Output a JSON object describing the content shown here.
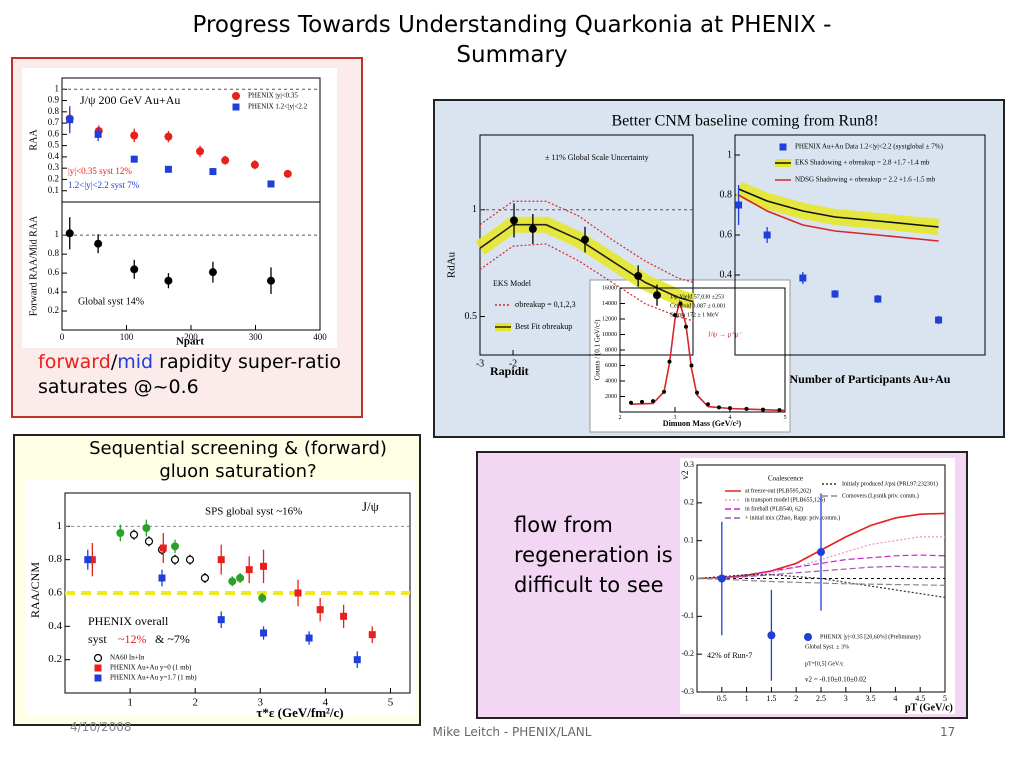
{
  "slide": {
    "title": "Progress Towards Understanding Quarkonia at PHENIX - Summary",
    "caption": [
      {
        "text": "forward",
        "color": "#e8201c"
      },
      {
        "text": "/"
      },
      {
        "text": "mid",
        "color": "#1f3fd8"
      },
      {
        "text": " rapidity super-ratio saturates @~0.6"
      }
    ],
    "side_text": "flow from regeneration is difficult to see",
    "date": "4/10/2008",
    "footer": "Mike Leitch - PHENIX/LANL",
    "page": 17
  },
  "chart_data": [
    {
      "type": "scatter",
      "ylabel": "RAA",
      "xlim": [
        0,
        400
      ],
      "ylim": [
        0,
        1.1
      ],
      "yticks": [
        0.1,
        0.2,
        0.3,
        0.4,
        0.5,
        0.6,
        0.7,
        0.8,
        0.9,
        1
      ],
      "reference_lines": [
        {
          "value": 1,
          "color": "#555555"
        }
      ],
      "series": [
        {
          "name": "PHENIX |y|<0.35",
          "color": "#e8201c",
          "marker": "circle",
          "x": [
            12,
            57,
            112,
            165,
            214,
            253,
            299,
            350
          ],
          "values": [
            0.74,
            0.63,
            0.59,
            0.58,
            0.45,
            0.37,
            0.33,
            0.25
          ],
          "errors": [
            0.08,
            0.05,
            0.06,
            0.05,
            0.05,
            0.04,
            0.04,
            0.03
          ]
        },
        {
          "name": "PHENIX 1.2<|y|<2.2",
          "color": "#1f3fd8",
          "marker": "square",
          "x": [
            12,
            56,
            112,
            165,
            234,
            324
          ],
          "values": [
            0.73,
            0.6,
            0.38,
            0.29,
            0.27,
            0.16
          ],
          "errors": [
            0.12,
            0.06,
            0.03,
            0.02,
            0.02,
            0.03
          ]
        }
      ],
      "annotations": [
        {
          "text": "J/ψ   200 GeV Au+Au"
        },
        {
          "text": "|y|<0.35 syst 12%",
          "color": "#e8201c"
        },
        {
          "text": "1.2<|y|<2.2 syst 7%",
          "color": "#1f3fd8"
        }
      ]
    },
    {
      "type": "scatter",
      "ylabel": "Forward RAA/Mid RAA",
      "xlabel": "Npart",
      "xlim": [
        0,
        400
      ],
      "xticks": [
        0,
        100,
        200,
        300,
        400
      ],
      "ylim": [
        0,
        1.35
      ],
      "yticks": [
        0.2,
        0.4,
        0.6,
        0.8,
        1
      ],
      "reference_lines": [
        {
          "value": 1,
          "color": "#555555"
        }
      ],
      "series": [
        {
          "color": "#000000",
          "marker": "circle",
          "x": [
            12,
            56,
            112,
            165,
            234,
            324
          ],
          "values": [
            1.02,
            0.91,
            0.64,
            0.52,
            0.61,
            0.52
          ],
          "errors": [
            0.17,
            0.1,
            0.1,
            0.08,
            0.11,
            0.14
          ]
        }
      ],
      "annotations": [
        {
          "text": "Global syst 14%"
        }
      ]
    },
    {
      "type": "scatter",
      "title": "Better CNM baseline coming from Run8!",
      "ylabel": "RdAu",
      "xlabel": "Rapidit",
      "xlim": [
        -3,
        3.45
      ],
      "xticks": [
        -3,
        -2
      ],
      "ylim": [
        0.32,
        1.35
      ],
      "yticks": [
        0.5,
        1
      ],
      "reference_lines": [
        {
          "value": 1,
          "color": "#555555"
        }
      ],
      "series": [
        {
          "name": "σbreakup = 0,1,2,3",
          "color": "#d62728",
          "marker": "dotted-line",
          "x": [
            -3,
            -2,
            -1,
            0,
            1,
            2,
            3,
            3.45
          ],
          "values": [
            0.93,
            1.04,
            1.04,
            0.97,
            0.86,
            0.76,
            0.68,
            0.66
          ]
        },
        {
          "color": "#d62728",
          "marker": "dotted-line",
          "x": [
            -3,
            -2,
            -1,
            0,
            1,
            2,
            3,
            3.45
          ],
          "values": [
            0.72,
            0.83,
            0.84,
            0.76,
            0.66,
            0.56,
            0.5,
            0.48
          ]
        },
        {
          "name": "Best Fit σbreakup",
          "color": "#222222",
          "band_color": "#e6e62a",
          "marker": "line",
          "x": [
            -3,
            -2,
            -1,
            0,
            1,
            2,
            3,
            3.45
          ],
          "values": [
            0.82,
            0.93,
            0.93,
            0.86,
            0.76,
            0.66,
            0.59,
            0.57
          ]
        },
        {
          "color": "#000000",
          "marker": "circle",
          "x": [
            -1.97,
            -1.4,
            0.18,
            1.79,
            2.36
          ],
          "values": [
            0.95,
            0.91,
            0.86,
            0.69,
            0.6
          ],
          "errors": [
            0.08,
            0.07,
            0.06,
            0.05,
            0.05
          ]
        }
      ],
      "annotations": [
        {
          "text": "± 11% Global Scale Uncertainty"
        },
        {
          "text": "EKS Model"
        }
      ]
    },
    {
      "type": "scatter",
      "xlabel": "Number of Participants Au+Au",
      "xlim": [
        0,
        350
      ],
      "ylim": [
        0,
        1.1
      ],
      "yticks": [
        0.4,
        0.6,
        0.8,
        1
      ],
      "series": [
        {
          "name": "EKS Shadowing + σbreakup = 2.8 +1.7 -1.4 mb",
          "color": "#111111",
          "band_color": "#e6e62a",
          "marker": "line",
          "x": [
            5,
            45,
            95,
            140,
            200,
            285
          ],
          "values": [
            0.83,
            0.77,
            0.72,
            0.69,
            0.67,
            0.64
          ]
        },
        {
          "name": "NDSG Shadowing + σbreakup = 2.2 +1.6 -1.5 mb",
          "color": "#d62728",
          "marker": "line",
          "x": [
            5,
            45,
            95,
            140,
            200,
            285
          ],
          "values": [
            0.8,
            0.72,
            0.65,
            0.62,
            0.6,
            0.57
          ]
        },
        {
          "name": "PHENIX Au+Au Data 1.2<|y|<2.2 (systglobal ± 7%)",
          "color": "#1f3fd8",
          "marker": "square",
          "x": [
            5,
            45,
            95,
            140,
            200,
            285
          ],
          "values": [
            0.75,
            0.6,
            0.385,
            0.305,
            0.28,
            0.175
          ],
          "errors": [
            0.1,
            0.04,
            0.03,
            0.02,
            0.02,
            0.02
          ]
        }
      ]
    },
    {
      "type": "scatter",
      "ylabel": "Counts / (0.1 GeV/c²)",
      "xlabel": "Dimuon Mass (GeV/c²)",
      "xlim": [
        2,
        5
      ],
      "xticks": [
        2,
        3,
        4,
        5
      ],
      "ylim": [
        0,
        16000
      ],
      "yticks": [
        2000,
        4000,
        6000,
        8000,
        10000,
        12000,
        14000,
        16000
      ],
      "series": [
        {
          "color": "#d62728",
          "marker": "line",
          "x": [
            2.2,
            2.6,
            2.8,
            2.9,
            3.0,
            3.087,
            3.2,
            3.3,
            3.4,
            3.6,
            4.0,
            5
          ],
          "values": [
            1000,
            1100,
            2600,
            6300,
            12000,
            14200,
            11200,
            5600,
            2200,
            700,
            450,
            200
          ]
        },
        {
          "color": "#000000",
          "marker": "small-circle",
          "x": [
            2.2,
            2.4,
            2.6,
            2.8,
            2.9,
            3.0,
            3.1,
            3.2,
            3.3,
            3.4,
            3.6,
            3.8,
            4.0,
            4.3,
            4.6,
            4.9
          ],
          "values": [
            1200,
            1300,
            1400,
            2600,
            6500,
            12500,
            14000,
            11000,
            6000,
            2500,
            1000,
            600,
            500,
            400,
            300,
            250
          ]
        }
      ],
      "annotations": [
        {
          "text": "J/ψ Yield 57,030 ±253"
        },
        {
          "text": "Centroid 3.087 ± 0.001"
        },
        {
          "text": "Sigma 172 ± 1 MeV"
        },
        {
          "text": "J/ψ → μ⁺μ⁻",
          "color": "#d62728"
        }
      ]
    },
    {
      "type": "scatter",
      "title": "Sequential screening & (forward) gluon saturation?",
      "ylabel": "RAA/CNM",
      "xlabel": "τ*ε (GeV/fm²/c)",
      "xlim": [
        0,
        5.3
      ],
      "xticks": [
        1,
        2,
        3,
        4,
        5
      ],
      "ylim": [
        0,
        1.2
      ],
      "yticks": [
        0.2,
        0.4,
        0.6,
        0.8,
        1
      ],
      "reference_lines": [
        {
          "value": 1,
          "color": "#888888"
        },
        {
          "value": 0.6,
          "color": "#f5e81a"
        }
      ],
      "series": [
        {
          "name": "NA60 In+In",
          "color": "#000000",
          "marker": "open-circle",
          "x": [
            1.06,
            1.29,
            1.49,
            1.69,
            1.92,
            2.15
          ],
          "values": [
            0.95,
            0.91,
            0.86,
            0.8,
            0.8,
            0.69
          ],
          "errors": [
            0.03,
            0.03,
            0.03,
            0.03,
            0.03,
            0.03
          ]
        },
        {
          "name": "PHENIX Au+Au y=0 (1 mb)",
          "color": "#e8201c",
          "marker": "square",
          "x": [
            0.42,
            1.51,
            2.4,
            2.83,
            3.05,
            3.58,
            3.92,
            4.28,
            4.72
          ],
          "values": [
            0.8,
            0.87,
            0.8,
            0.74,
            0.76,
            0.6,
            0.5,
            0.46,
            0.35
          ],
          "errors": [
            0.1,
            0.09,
            0.09,
            0.08,
            0.1,
            0.08,
            0.07,
            0.07,
            0.05
          ]
        },
        {
          "name": "PHENIX Au+Au y=1.7 (1 mb)",
          "color": "#1f3fd8",
          "marker": "square",
          "x": [
            0.35,
            1.49,
            2.4,
            3.05,
            3.75,
            4.49
          ],
          "values": [
            0.8,
            0.69,
            0.44,
            0.36,
            0.33,
            0.2
          ],
          "errors": [
            0.06,
            0.05,
            0.05,
            0.04,
            0.04,
            0.05
          ]
        },
        {
          "color": "#2ca02c",
          "marker": "circle",
          "x": [
            0.85,
            1.25,
            1.69,
            2.57,
            2.69,
            3.03
          ],
          "values": [
            0.96,
            0.99,
            0.88,
            0.67,
            0.69,
            0.57
          ],
          "errors": [
            0.05,
            0.05,
            0.04,
            0.03,
            0.03,
            0.03
          ]
        }
      ],
      "annotations": [
        {
          "text": "SPS global syst ~16%"
        },
        {
          "text": "J/ψ"
        },
        {
          "text": "PHENIX overall"
        },
        {
          "text": "syst"
        },
        {
          "text": "~12%",
          "color": "#e8201c"
        },
        {
          "text": "& ~7%"
        }
      ]
    },
    {
      "type": "scatter",
      "ylabel": "v2",
      "xlabel": "pT (GeV/c)",
      "xlim": [
        0,
        5
      ],
      "xticks": [
        0.5,
        1,
        1.5,
        2,
        2.5,
        3,
        3.5,
        4,
        4.5,
        5
      ],
      "ylim": [
        -0.3,
        0.3
      ],
      "yticks": [
        -0.3,
        -0.2,
        -0.1,
        0,
        0.1,
        0.2,
        0.3
      ],
      "reference_lines": [
        {
          "value": 0,
          "color": "#000000"
        }
      ],
      "series": [
        {
          "name": "at freeze-out (PLB595,202)",
          "color": "#e8201c",
          "marker": "line",
          "x": [
            0,
            0.5,
            1,
            1.5,
            2,
            2.5,
            3,
            3.5,
            4,
            4.5,
            5
          ],
          "values": [
            0,
            0.002,
            0.008,
            0.02,
            0.04,
            0.075,
            0.11,
            0.14,
            0.16,
            0.17,
            0.172
          ]
        },
        {
          "name": "in transport model (PLB655,126)",
          "color": "#e79ab8",
          "marker": "dotted-line",
          "x": [
            0,
            0.5,
            1,
            1.5,
            2,
            2.5,
            3,
            3.5,
            4,
            4.5,
            5
          ],
          "values": [
            0,
            0,
            0.005,
            0.015,
            0.03,
            0.05,
            0.07,
            0.09,
            0.1,
            0.11,
            0.11
          ]
        },
        {
          "name": "in fireball (PLB540, 62)",
          "color": "#d020d0",
          "marker": "dashed-line",
          "x": [
            0,
            0.5,
            1,
            1.5,
            2,
            2.5,
            3,
            3.5,
            4,
            4.5,
            5
          ],
          "values": [
            0,
            0.002,
            0.01,
            0.02,
            0.03,
            0.04,
            0.05,
            0.055,
            0.06,
            0.062,
            0.06
          ]
        },
        {
          "name": "+ initial mix (Zhao, Rapp: priv. comm.)",
          "color": "#9b59b6",
          "marker": "dashed-line",
          "x": [
            0,
            0.5,
            1,
            1.5,
            2,
            2.5,
            3,
            3.5,
            4,
            4.5,
            5
          ],
          "values": [
            0,
            0.001,
            0.005,
            0.01,
            0.015,
            0.02,
            0.025,
            0.03,
            0.032,
            0.03,
            0.03
          ]
        },
        {
          "name": "Initialy produced J/psi (PRL97:232301)",
          "color": "#333333",
          "marker": "dotted-line",
          "x": [
            0,
            0.5,
            1,
            1.5,
            2,
            2.5,
            3,
            3.5,
            4,
            4.5,
            5
          ],
          "values": [
            0,
            0.005,
            0.01,
            0.01,
            0.005,
            0,
            -0.01,
            -0.02,
            -0.03,
            -0.04,
            -0.05
          ]
        },
        {
          "name": "Comovers (Lysnik priv. comm.)",
          "color": "#888888",
          "marker": "dashed-line",
          "x": [
            0,
            0.5,
            1,
            1.5,
            2,
            2.5,
            3,
            3.5,
            4,
            4.5,
            5
          ],
          "values": [
            0,
            -0.002,
            -0.005,
            -0.008,
            -0.01,
            -0.012,
            -0.014,
            -0.015,
            -0.016,
            -0.017,
            -0.018
          ]
        },
        {
          "name": "PHENIX |y|<0.35 [20,60%] (Preliminary)",
          "color": "#1f3fd8",
          "marker": "circle",
          "x": [
            0.5,
            1.5,
            2.5
          ],
          "values": [
            0,
            -0.15,
            0.07
          ],
          "errors": [
            0.15,
            0.12,
            0.155
          ]
        }
      ],
      "annotations": [
        {
          "text": "Coalescence"
        },
        {
          "text": "42% of Run-7"
        },
        {
          "text": "Global Syst. ± 3%"
        },
        {
          "text": "pT=[0,5] GeV/c"
        },
        {
          "text": "v2 = -0.10±0.10±0.02"
        }
      ]
    }
  ]
}
